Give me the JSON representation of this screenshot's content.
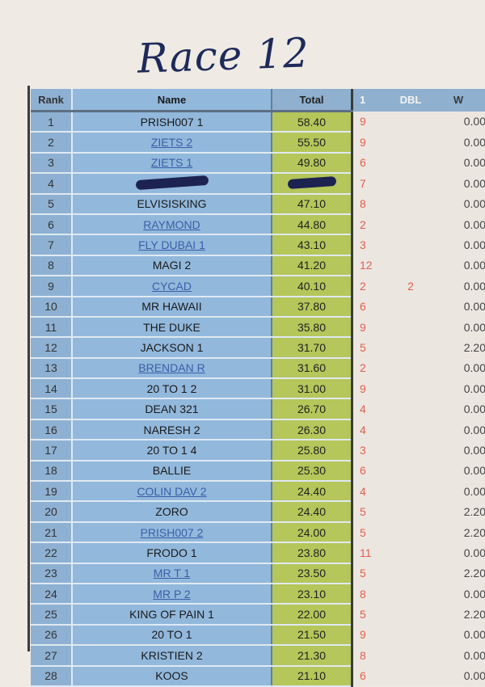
{
  "title": "Race 12",
  "columns": {
    "rank": "Rank",
    "name": "Name",
    "total": "Total",
    "one": "1",
    "dbl": "DBL",
    "w": "W"
  },
  "colors": {
    "rank_bg": "#8eb1d3",
    "name_bg": "#92b8dc",
    "total_bg": "#b5c65a",
    "pick_text": "#e0604e",
    "link_text": "#3b5fa8"
  },
  "rows": [
    {
      "rank": "1",
      "name": "PRISH007  1",
      "total": "58.40",
      "one": "9",
      "dbl": "",
      "w": "0.00",
      "link": false
    },
    {
      "rank": "2",
      "name": "ZIETS 2",
      "total": "55.50",
      "one": "9",
      "dbl": "",
      "w": "0.00",
      "link": true
    },
    {
      "rank": "3",
      "name": "ZIETS 1",
      "total": "49.80",
      "one": "6",
      "dbl": "",
      "w": "0.00",
      "link": true
    },
    {
      "rank": "4",
      "name": null,
      "total": null,
      "one": "7",
      "dbl": "",
      "w": "0.00",
      "link": false,
      "redacted": true
    },
    {
      "rank": "5",
      "name": "ELVISISKING",
      "total": "47.10",
      "one": "8",
      "dbl": "",
      "w": "0.00",
      "link": false
    },
    {
      "rank": "6",
      "name": "RAYMOND",
      "total": "44.80",
      "one": "2",
      "dbl": "",
      "w": "0.00",
      "link": true
    },
    {
      "rank": "7",
      "name": "FLY DUBAI 1",
      "total": "43.10",
      "one": "3",
      "dbl": "",
      "w": "0.00",
      "link": true
    },
    {
      "rank": "8",
      "name": "MAGI 2",
      "total": "41.20",
      "one": "12",
      "dbl": "",
      "w": "0.00",
      "link": false
    },
    {
      "rank": "9",
      "name": "CYCAD",
      "total": "40.10",
      "one": "2",
      "dbl": "2",
      "w": "0.00",
      "link": true
    },
    {
      "rank": "10",
      "name": "MR HAWAII",
      "total": "37.80",
      "one": "6",
      "dbl": "",
      "w": "0.00",
      "link": false
    },
    {
      "rank": "11",
      "name": "THE DUKE",
      "total": "35.80",
      "one": "9",
      "dbl": "",
      "w": "0.00",
      "link": false
    },
    {
      "rank": "12",
      "name": "JACKSON 1",
      "total": "31.70",
      "one": "5",
      "dbl": "",
      "w": "2.20",
      "link": false
    },
    {
      "rank": "13",
      "name": "BRENDAN R",
      "total": "31.60",
      "one": "2",
      "dbl": "",
      "w": "0.00",
      "link": true
    },
    {
      "rank": "14",
      "name": "20 TO 1  2",
      "total": "31.00",
      "one": "9",
      "dbl": "",
      "w": "0.00",
      "link": false
    },
    {
      "rank": "15",
      "name": "DEAN 321",
      "total": "26.70",
      "one": "4",
      "dbl": "",
      "w": "0.00",
      "link": false
    },
    {
      "rank": "16",
      "name": "NARESH 2",
      "total": "26.30",
      "one": "4",
      "dbl": "",
      "w": "0.00",
      "link": false
    },
    {
      "rank": "17",
      "name": "20 TO 1  4",
      "total": "25.80",
      "one": "3",
      "dbl": "",
      "w": "0.00",
      "link": false
    },
    {
      "rank": "18",
      "name": "BALLIE",
      "total": "25.30",
      "one": "6",
      "dbl": "",
      "w": "0.00",
      "link": false
    },
    {
      "rank": "19",
      "name": "COLIN DAV 2",
      "total": "24.40",
      "one": "4",
      "dbl": "",
      "w": "0.00",
      "link": true
    },
    {
      "rank": "20",
      "name": "ZORO",
      "total": "24.40",
      "one": "5",
      "dbl": "",
      "w": "2.20",
      "link": false
    },
    {
      "rank": "21",
      "name": "PRISH007  2",
      "total": "24.00",
      "one": "5",
      "dbl": "",
      "w": "2.20",
      "link": true
    },
    {
      "rank": "22",
      "name": "FRODO 1",
      "total": "23.80",
      "one": "11",
      "dbl": "",
      "w": "0.00",
      "link": false
    },
    {
      "rank": "23",
      "name": "MR T  1",
      "total": "23.50",
      "one": "5",
      "dbl": "",
      "w": "2.20",
      "link": true
    },
    {
      "rank": "24",
      "name": "MR P 2",
      "total": "23.10",
      "one": "8",
      "dbl": "",
      "w": "0.00",
      "link": true
    },
    {
      "rank": "25",
      "name": "KING OF PAIN 1",
      "total": "22.00",
      "one": "5",
      "dbl": "",
      "w": "2.20",
      "link": false
    },
    {
      "rank": "26",
      "name": "20 TO 1",
      "total": "21.50",
      "one": "9",
      "dbl": "",
      "w": "0.00",
      "link": false
    },
    {
      "rank": "27",
      "name": "KRISTIEN 2",
      "total": "21.30",
      "one": "8",
      "dbl": "",
      "w": "0.00",
      "link": false
    },
    {
      "rank": "28",
      "name": "KOOS",
      "total": "21.10",
      "one": "6",
      "dbl": "",
      "w": "0.00",
      "link": false
    }
  ]
}
